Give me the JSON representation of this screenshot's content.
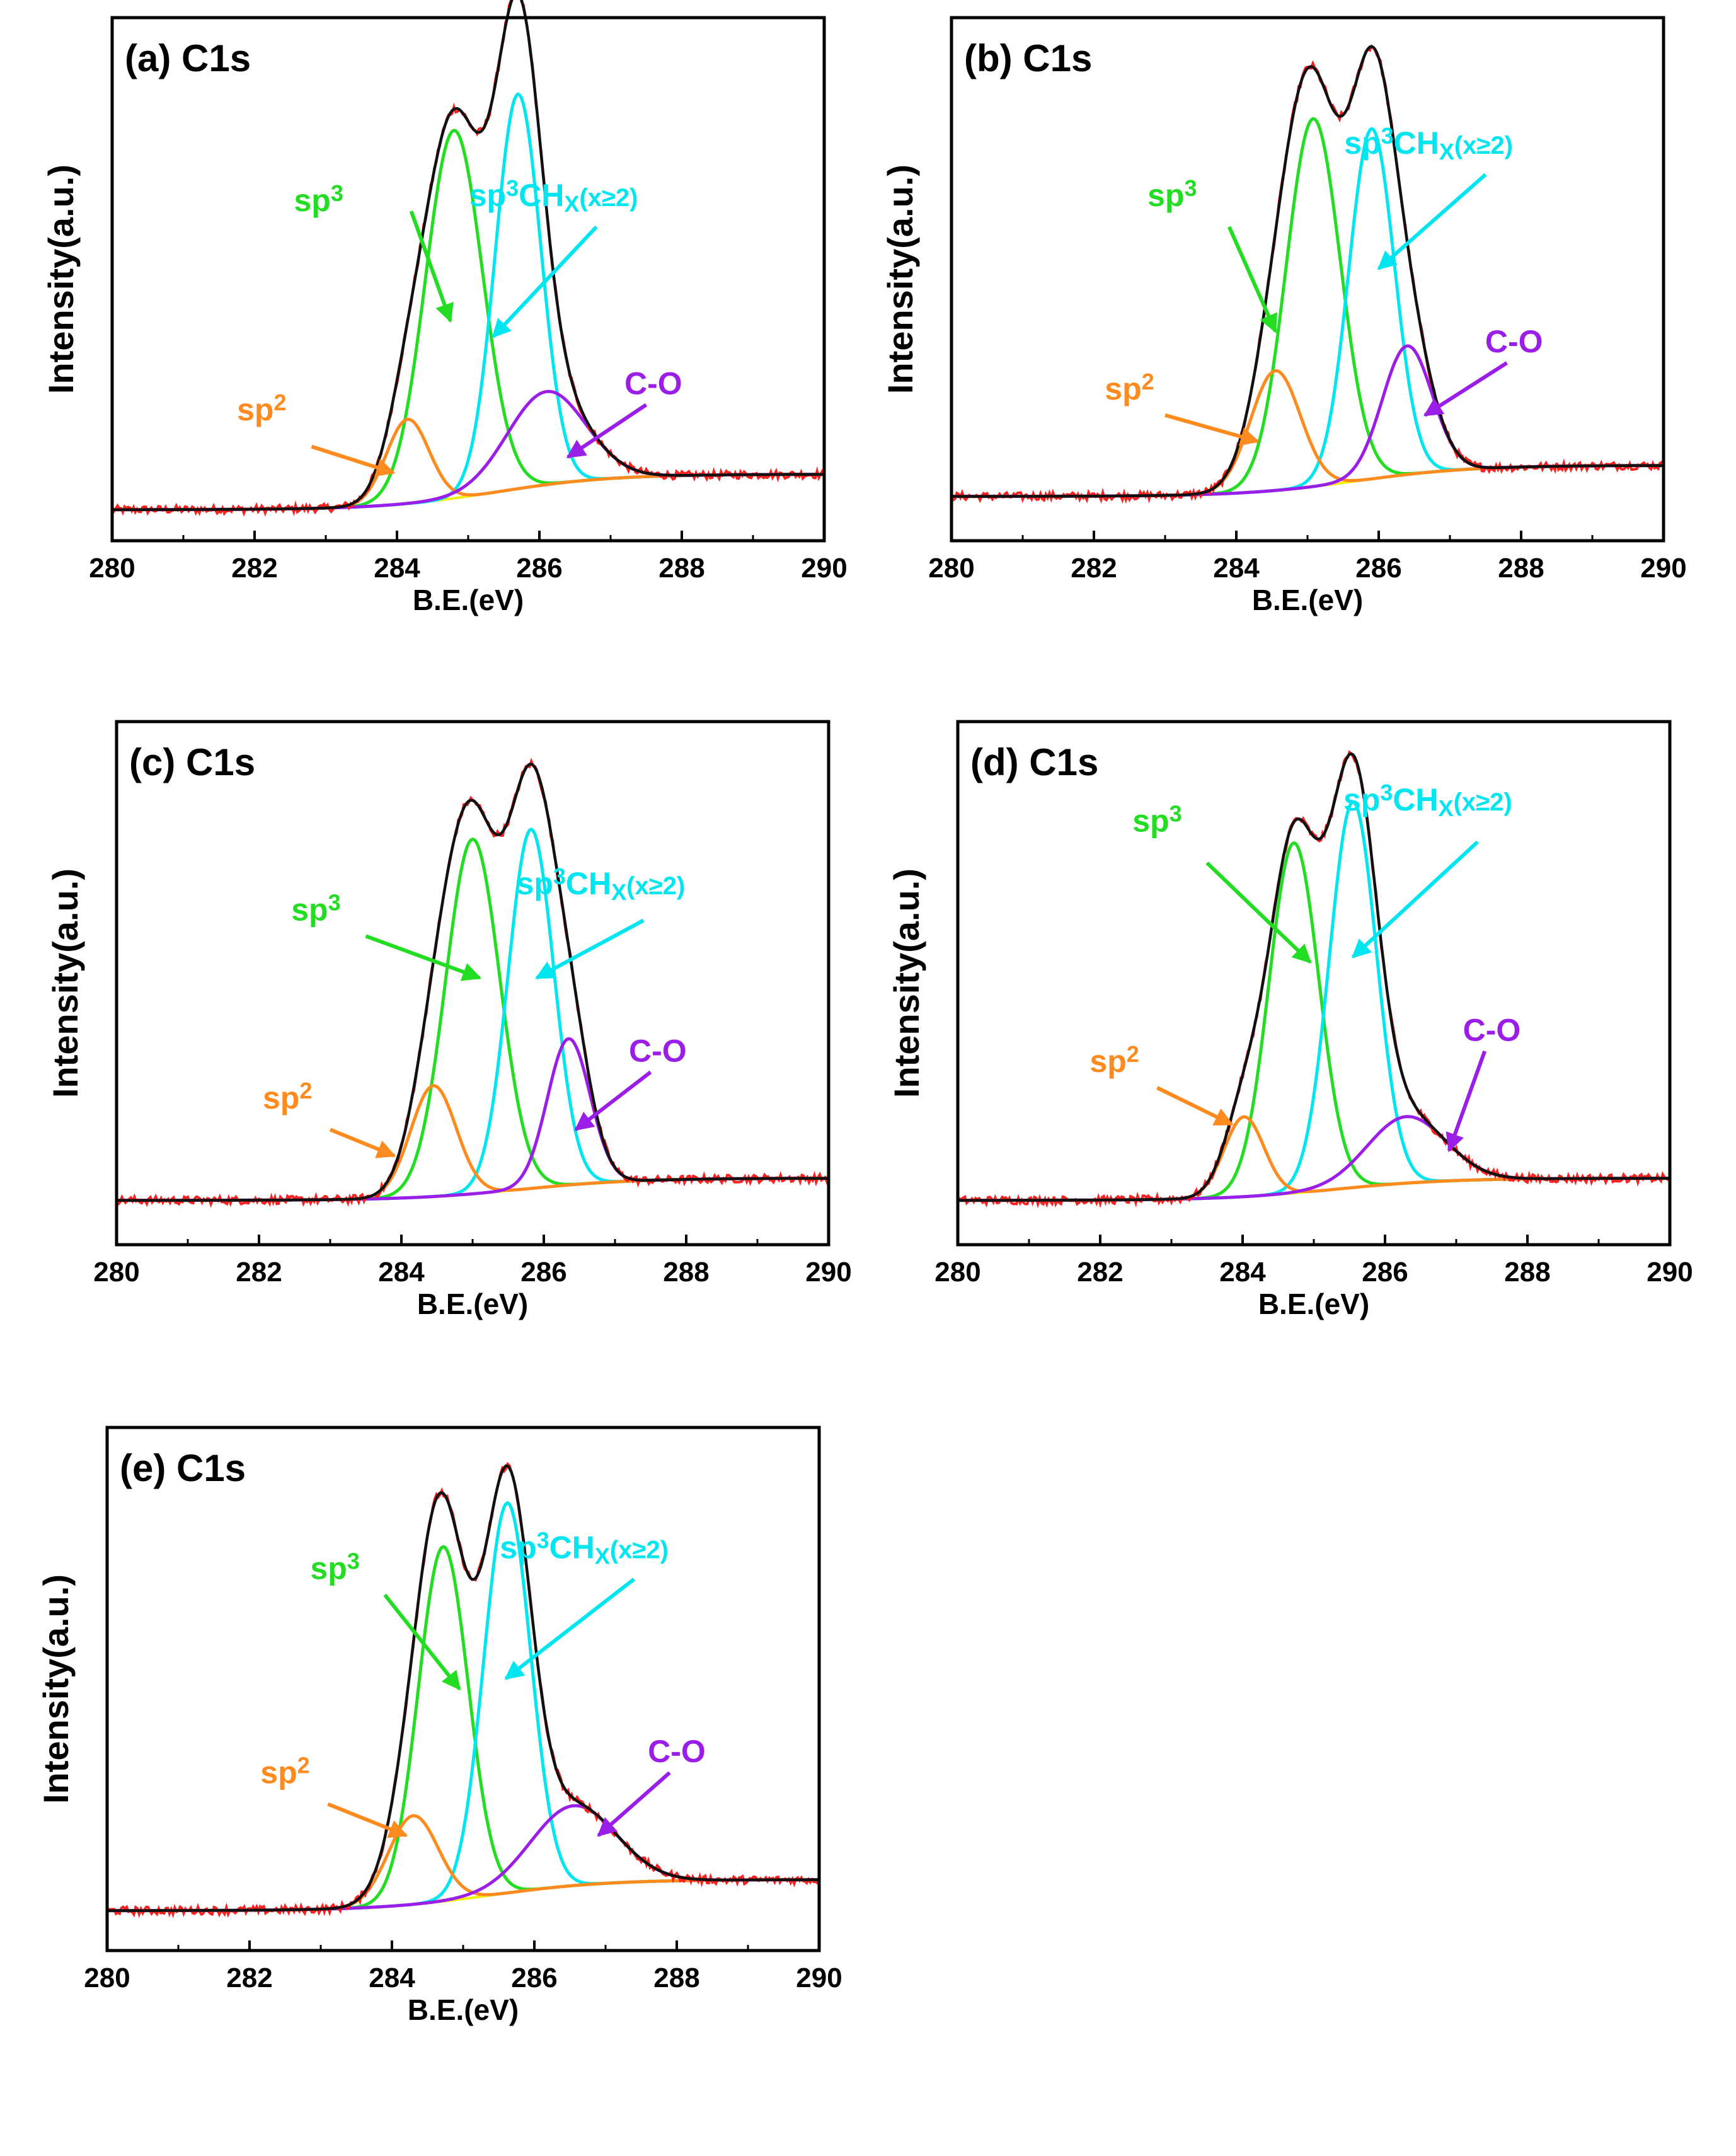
{
  "figure": {
    "x_axis_label": "B.E.(eV)",
    "y_axis_label": "Intensity(a.u.)",
    "x_ticks": [
      "280",
      "282",
      "284",
      "286",
      "288",
      "290"
    ],
    "colors": {
      "raw": "#ff2020",
      "envelope": "#111111",
      "sp3": "#22dd22",
      "sp3chx": "#00e6f0",
      "sp2": "#ff8a1e",
      "co": "#9a1ee8",
      "background": "#f0f000",
      "axis": "#000000"
    }
  },
  "chart_data": [
    {
      "type": "line",
      "id": "a",
      "title": "(a) C1s",
      "xlabel": "B.E.(eV)",
      "ylabel": "Intensity(a.u.)",
      "xlim": [
        280,
        290
      ],
      "ylim": [
        0,
        1.18
      ],
      "grid": false,
      "baseline": {
        "low": 0.07,
        "high": 0.15,
        "center": 285.4,
        "width": 0.8
      },
      "components": [
        {
          "name": "sp3",
          "label": "sp3",
          "center": 284.8,
          "height": 0.83,
          "sigma": 0.4
        },
        {
          "name": "sp3chx",
          "label": "sp3CHx(x≥2)",
          "center": 285.7,
          "height": 0.89,
          "sigma": 0.32
        },
        {
          "name": "sp2",
          "label": "sp2",
          "center": 284.15,
          "height": 0.19,
          "sigma": 0.3
        },
        {
          "name": "co",
          "label": "C-O",
          "center": 286.1,
          "height": 0.21,
          "sigma": 0.55
        }
      ],
      "labels": {
        "sp3": {
          "text": "sp",
          "sup": "3"
        },
        "sp3chx": {
          "text": "sp",
          "sup": "3",
          "rest": "CH",
          "sub": "X",
          "tail": "(x≥2)"
        },
        "sp2": {
          "text": "sp",
          "sup": "2"
        },
        "co": {
          "text": "C-O"
        }
      }
    },
    {
      "type": "line",
      "id": "b",
      "title": "(b) C1s",
      "xlabel": "B.E.(eV)",
      "ylabel": "Intensity(a.u.)",
      "xlim": [
        280,
        290
      ],
      "ylim": [
        0,
        1.18
      ],
      "grid": false,
      "baseline": {
        "low": 0.1,
        "high": 0.17,
        "center": 285.7,
        "width": 0.8
      },
      "components": [
        {
          "name": "sp3",
          "label": "sp3",
          "center": 285.08,
          "height": 0.83,
          "sigma": 0.38
        },
        {
          "name": "sp3chx",
          "label": "sp3CHx(x≥2)",
          "center": 285.9,
          "height": 0.79,
          "sigma": 0.32
        },
        {
          "name": "sp2",
          "label": "sp2",
          "center": 284.55,
          "height": 0.27,
          "sigma": 0.35
        },
        {
          "name": "co",
          "label": "C-O",
          "center": 286.4,
          "height": 0.29,
          "sigma": 0.35
        }
      ],
      "labels": {
        "sp3": {
          "text": "sp",
          "sup": "3"
        },
        "sp3chx": {
          "text": "sp",
          "sup": "3",
          "rest": "CH",
          "sub": "X",
          "tail": "(x≥2)"
        },
        "sp2": {
          "text": "sp",
          "sup": "2"
        },
        "co": {
          "text": "C-O"
        }
      }
    },
    {
      "type": "line",
      "id": "c",
      "title": "(c) C1s",
      "xlabel": "B.E.(eV)",
      "ylabel": "Intensity(a.u.)",
      "xlim": [
        280,
        290
      ],
      "ylim": [
        0,
        1.18
      ],
      "grid": false,
      "baseline": {
        "low": 0.1,
        "high": 0.15,
        "center": 285.7,
        "width": 0.8
      },
      "components": [
        {
          "name": "sp3",
          "label": "sp3",
          "center": 285.0,
          "height": 0.8,
          "sigma": 0.38
        },
        {
          "name": "sp3chx",
          "label": "sp3CHx(x≥2)",
          "center": 285.82,
          "height": 0.81,
          "sigma": 0.32
        },
        {
          "name": "sp2",
          "label": "sp2",
          "center": 284.45,
          "height": 0.25,
          "sigma": 0.32
        },
        {
          "name": "co",
          "label": "C-O",
          "center": 286.35,
          "height": 0.33,
          "sigma": 0.3
        }
      ],
      "labels": {
        "sp3": {
          "text": "sp",
          "sup": "3"
        },
        "sp3chx": {
          "text": "sp",
          "sup": "3",
          "rest": "CH",
          "sub": "X",
          "tail": "(x≥2)"
        },
        "sp2": {
          "text": "sp",
          "sup": "2"
        },
        "co": {
          "text": "C-O"
        }
      }
    },
    {
      "type": "line",
      "id": "d",
      "title": "(d) C1s",
      "xlabel": "B.E.(eV)",
      "ylabel": "Intensity(a.u.)",
      "xlim": [
        280,
        290
      ],
      "ylim": [
        0,
        1.18
      ],
      "grid": false,
      "baseline": {
        "low": 0.1,
        "high": 0.15,
        "center": 285.3,
        "width": 0.8
      },
      "components": [
        {
          "name": "sp3",
          "label": "sp3",
          "center": 284.72,
          "height": 0.79,
          "sigma": 0.35
        },
        {
          "name": "sp3chx",
          "label": "sp3CHx(x≥2)",
          "center": 285.55,
          "height": 0.87,
          "sigma": 0.33
        },
        {
          "name": "sp2",
          "label": "sp2",
          "center": 284.02,
          "height": 0.18,
          "sigma": 0.28
        },
        {
          "name": "co",
          "label": "C-O",
          "center": 286.3,
          "height": 0.15,
          "sigma": 0.55
        }
      ],
      "labels": {
        "sp3": {
          "text": "sp",
          "sup": "3"
        },
        "sp3chx": {
          "text": "sp",
          "sup": "3",
          "rest": "CH",
          "sub": "X",
          "tail": "(x≥2)"
        },
        "sp2": {
          "text": "sp",
          "sup": "2"
        },
        "co": {
          "text": "C-O"
        }
      }
    },
    {
      "type": "line",
      "id": "e",
      "title": "(e) C1s",
      "xlabel": "B.E.(eV)",
      "ylabel": "Intensity(a.u.)",
      "xlim": [
        280,
        290
      ],
      "ylim": [
        0,
        1.18
      ],
      "grid": false,
      "baseline": {
        "low": 0.09,
        "high": 0.16,
        "center": 285.4,
        "width": 0.8
      },
      "components": [
        {
          "name": "sp3",
          "label": "sp3",
          "center": 284.72,
          "height": 0.8,
          "sigma": 0.35
        },
        {
          "name": "sp3chx",
          "label": "sp3CHx(x≥2)",
          "center": 285.62,
          "height": 0.88,
          "sigma": 0.33
        },
        {
          "name": "sp2",
          "label": "sp2",
          "center": 284.3,
          "height": 0.2,
          "sigma": 0.35
        },
        {
          "name": "co",
          "label": "C-O",
          "center": 286.55,
          "height": 0.18,
          "sigma": 0.6
        }
      ],
      "labels": {
        "sp3": {
          "text": "sp",
          "sup": "3"
        },
        "sp3chx": {
          "text": "sp",
          "sup": "3",
          "rest": "CH",
          "sub": "X",
          "tail": "(x≥2)"
        },
        "sp2": {
          "text": "sp",
          "sup": "2"
        },
        "co": {
          "text": "C-O"
        }
      }
    }
  ]
}
